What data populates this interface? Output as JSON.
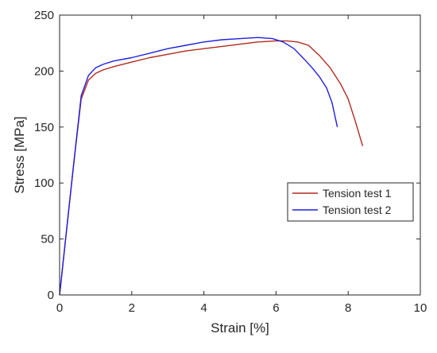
{
  "chart_data": {
    "type": "line",
    "xlabel": "Strain [%]",
    "ylabel": "Stress [MPa]",
    "xlim": [
      0,
      10
    ],
    "ylim": [
      0,
      250
    ],
    "xticks": [
      "0",
      "2",
      "4",
      "6",
      "8",
      "10"
    ],
    "yticks": [
      "0",
      "50",
      "100",
      "150",
      "200",
      "250"
    ],
    "grid": false,
    "legend_position": "lower-right",
    "series": [
      {
        "name": "Tension test 1",
        "color": "#b02a1e",
        "x": [
          0,
          0.2,
          0.4,
          0.6,
          0.8,
          1.0,
          1.2,
          1.5,
          2.0,
          2.5,
          3.0,
          3.5,
          4.0,
          4.5,
          5.0,
          5.5,
          6.0,
          6.3,
          6.6,
          6.9,
          7.2,
          7.5,
          7.8,
          8.0,
          8.2,
          8.4
        ],
        "y": [
          0,
          60,
          120,
          175,
          192,
          198,
          201,
          204,
          208,
          212,
          215,
          218,
          220,
          222,
          224,
          226,
          227,
          227,
          226,
          223,
          214,
          203,
          188,
          175,
          155,
          133
        ]
      },
      {
        "name": "Tension test 2",
        "color": "#1f1fe0",
        "x": [
          0,
          0.2,
          0.4,
          0.6,
          0.8,
          1.0,
          1.2,
          1.5,
          2.0,
          2.5,
          3.0,
          3.5,
          4.0,
          4.5,
          5.0,
          5.5,
          5.9,
          6.2,
          6.5,
          6.8,
          7.0,
          7.2,
          7.4,
          7.55,
          7.7
        ],
        "y": [
          0,
          60,
          120,
          178,
          196,
          203,
          206,
          209,
          212,
          216,
          220,
          223,
          226,
          228,
          229,
          230,
          229,
          226,
          220,
          210,
          203,
          195,
          185,
          172,
          150
        ]
      }
    ]
  }
}
